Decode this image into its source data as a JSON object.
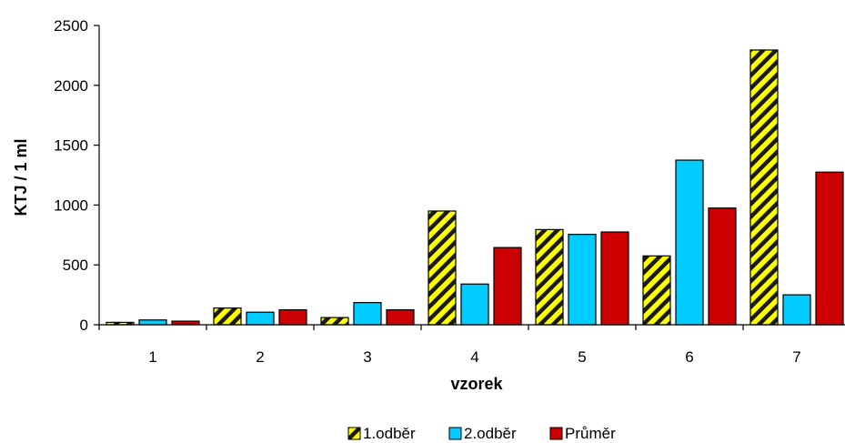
{
  "chart_data": {
    "type": "bar",
    "categories": [
      "1",
      "2",
      "3",
      "4",
      "5",
      "6",
      "7"
    ],
    "series": [
      {
        "name": "1.odběr",
        "values": [
          20,
          140,
          60,
          950,
          795,
          575,
          2295
        ],
        "color": "#ffff00",
        "pattern": "diagonal-stripes-dark"
      },
      {
        "name": "2.odběr",
        "values": [
          40,
          105,
          185,
          340,
          755,
          1375,
          250
        ],
        "color": "#00ccff"
      },
      {
        "name": "Průměr",
        "values": [
          30,
          125,
          125,
          645,
          775,
          975,
          1275
        ],
        "color": "#cc0000"
      }
    ],
    "xlabel": "vzorek",
    "ylabel": "KTJ / 1 ml",
    "ylim": [
      0,
      2500
    ],
    "yticks": [
      0,
      500,
      1000,
      1500,
      2000,
      2500
    ],
    "grid": false,
    "legend_position": "bottom"
  }
}
